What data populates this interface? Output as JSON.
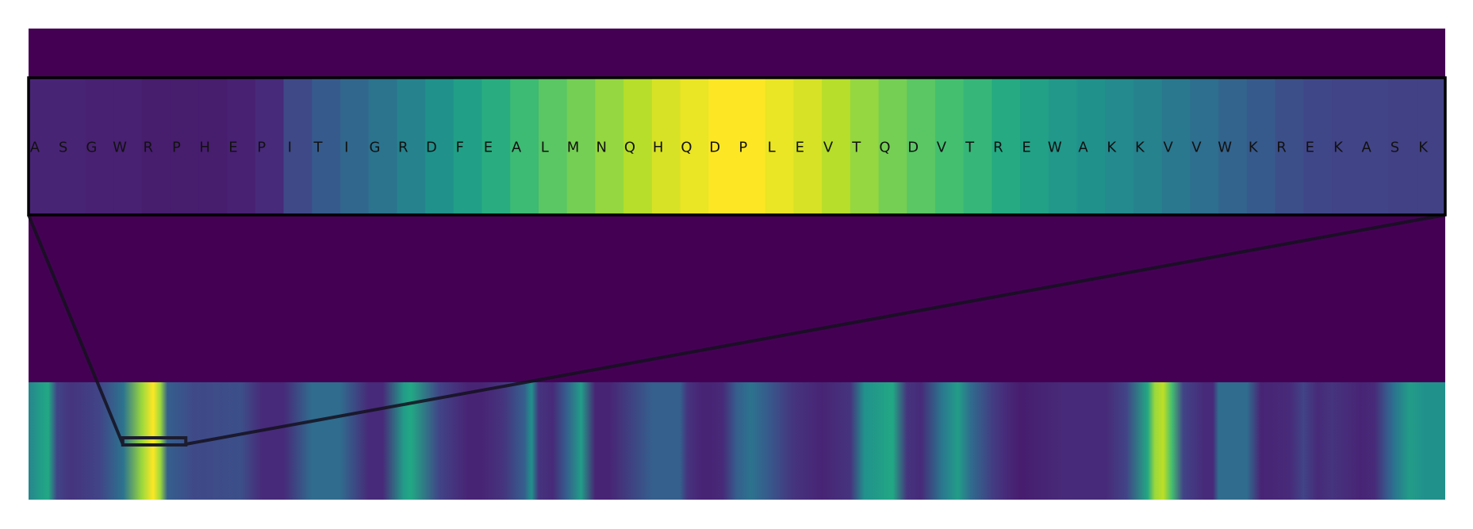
{
  "chart_data": {
    "type": "heatmap",
    "title": "",
    "xlabel": "",
    "ylabel": "",
    "colormap": "viridis",
    "value_range": [
      0,
      1
    ],
    "background_color": "#440154",
    "zoom_window": {
      "sequence": [
        "A",
        "S",
        "G",
        "W",
        "R",
        "P",
        "H",
        "E",
        "P",
        "I",
        "T",
        "I",
        "G",
        "R",
        "D",
        "F",
        "E",
        "A",
        "L",
        "M",
        "N",
        "Q",
        "H",
        "Q",
        "D",
        "P",
        "L",
        "E",
        "V",
        "T",
        "Q",
        "D",
        "V",
        "T",
        "R",
        "E",
        "W",
        "A",
        "K",
        "K",
        "V",
        "V",
        "W",
        "K",
        "R",
        "E",
        "K",
        "A",
        "S",
        "K"
      ],
      "values": [
        0.1,
        0.1,
        0.09,
        0.09,
        0.08,
        0.08,
        0.08,
        0.09,
        0.12,
        0.22,
        0.28,
        0.33,
        0.38,
        0.44,
        0.5,
        0.56,
        0.62,
        0.68,
        0.74,
        0.79,
        0.84,
        0.89,
        0.94,
        0.97,
        1.0,
        1.0,
        0.97,
        0.94,
        0.89,
        0.84,
        0.79,
        0.74,
        0.7,
        0.66,
        0.61,
        0.57,
        0.53,
        0.5,
        0.47,
        0.44,
        0.4,
        0.36,
        0.32,
        0.28,
        0.24,
        0.21,
        0.2,
        0.2,
        0.19,
        0.19
      ],
      "overview_start": 0.0665,
      "overview_end": 0.111
    },
    "overview_track": {
      "position": [
        0.0,
        0.008,
        0.014,
        0.02,
        0.03,
        0.05,
        0.067,
        0.08,
        0.088,
        0.093,
        0.098,
        0.108,
        0.117,
        0.15,
        0.165,
        0.18,
        0.2,
        0.22,
        0.24,
        0.25,
        0.265,
        0.27,
        0.29,
        0.31,
        0.32,
        0.335,
        0.35,
        0.355,
        0.36,
        0.37,
        0.38,
        0.39,
        0.4,
        0.41,
        0.44,
        0.46,
        0.465,
        0.475,
        0.482,
        0.49,
        0.5,
        0.51,
        0.52,
        0.54,
        0.56,
        0.58,
        0.59,
        0.61,
        0.62,
        0.63,
        0.645,
        0.656,
        0.665,
        0.68,
        0.69,
        0.7,
        0.73,
        0.745,
        0.76,
        0.775,
        0.79,
        0.795,
        0.801,
        0.807,
        0.815,
        0.83,
        0.836,
        0.84,
        0.85,
        0.86,
        0.87,
        0.89,
        0.9,
        0.91,
        0.92,
        0.94,
        0.95,
        0.96,
        0.965,
        0.975,
        0.985,
        1.0
      ],
      "values": [
        0.45,
        0.55,
        0.6,
        0.2,
        0.15,
        0.2,
        0.38,
        0.85,
        1.0,
        0.85,
        0.3,
        0.26,
        0.22,
        0.24,
        0.12,
        0.12,
        0.35,
        0.35,
        0.12,
        0.12,
        0.55,
        0.6,
        0.2,
        0.1,
        0.1,
        0.15,
        0.3,
        0.5,
        0.15,
        0.12,
        0.3,
        0.55,
        0.1,
        0.1,
        0.3,
        0.3,
        0.15,
        0.1,
        0.1,
        0.12,
        0.3,
        0.38,
        0.3,
        0.15,
        0.1,
        0.15,
        0.5,
        0.6,
        0.15,
        0.12,
        0.4,
        0.55,
        0.35,
        0.18,
        0.12,
        0.08,
        0.12,
        0.12,
        0.12,
        0.2,
        0.6,
        0.85,
        0.9,
        0.7,
        0.2,
        0.12,
        0.12,
        0.35,
        0.35,
        0.35,
        0.1,
        0.12,
        0.2,
        0.12,
        0.15,
        0.1,
        0.12,
        0.3,
        0.4,
        0.55,
        0.5,
        0.5
      ]
    }
  }
}
